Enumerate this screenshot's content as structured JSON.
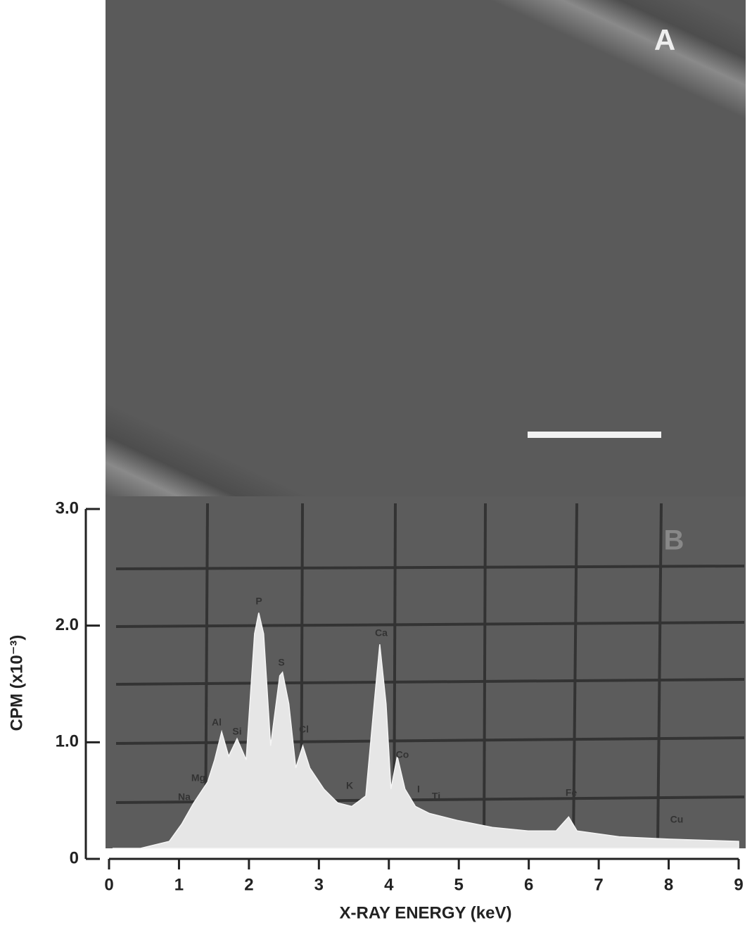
{
  "chart_data": {
    "type": "area",
    "panel_labels": [
      "A",
      "B"
    ],
    "xlabel": "X-RAY ENERGY (keV)",
    "ylabel": "CPM (x10⁻³)",
    "x": [
      0.05,
      0.45,
      0.86,
      1.04,
      1.21,
      1.41,
      1.51,
      1.61,
      1.71,
      1.83,
      1.96,
      2.08,
      2.14,
      2.21,
      2.31,
      2.44,
      2.48,
      2.57,
      2.67,
      2.77,
      2.87,
      3.07,
      3.27,
      3.47,
      3.67,
      3.79,
      3.87,
      3.96,
      4.03,
      4.12,
      4.23,
      4.38,
      4.58,
      4.98,
      5.48,
      5.99,
      6.39,
      6.57,
      6.69,
      7.29,
      8.0,
      8.5,
      9.0
    ],
    "values": [
      0.06,
      0.09,
      0.15,
      0.3,
      0.48,
      0.66,
      0.85,
      1.09,
      0.88,
      1.03,
      0.85,
      1.93,
      2.11,
      1.93,
      0.97,
      1.57,
      1.6,
      1.33,
      0.78,
      0.97,
      0.78,
      0.6,
      0.48,
      0.45,
      0.54,
      1.33,
      1.84,
      1.33,
      0.6,
      0.88,
      0.6,
      0.45,
      0.39,
      0.33,
      0.27,
      0.24,
      0.24,
      0.36,
      0.24,
      0.19,
      0.17,
      0.16,
      0.15
    ],
    "color": "#e6e6e6",
    "annotations": [
      "P",
      "Ca",
      "S",
      "Al",
      "Si",
      "Cl",
      "Co",
      "Mg",
      "Na",
      "K",
      "I",
      "Ti",
      "Fe",
      "Cu"
    ],
    "xlim": [
      0,
      9
    ],
    "xticks": [
      0,
      1,
      2,
      3,
      4,
      5,
      6,
      7,
      8,
      9
    ],
    "ylim": [
      0,
      3
    ],
    "yticks": [
      0,
      {
        "value": 1,
        "label": "1.0"
      },
      {
        "value": 2,
        "label": "2.0"
      },
      {
        "value": 3,
        "label": "3.0"
      }
    ]
  }
}
